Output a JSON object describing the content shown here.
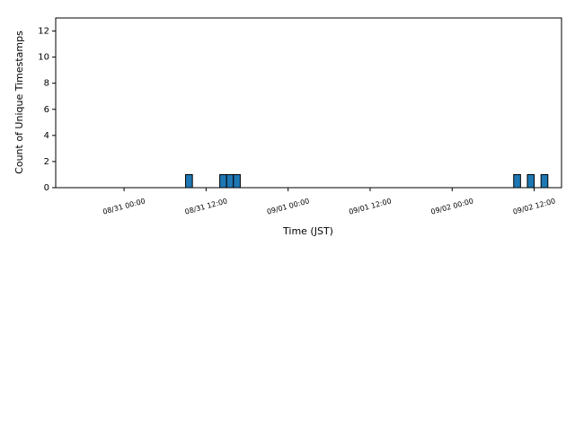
{
  "chart_data": {
    "type": "histogram",
    "xlabel": "Time (JST)",
    "ylabel": "Count of Unique Timestamps",
    "bins": [
      9,
      10,
      11,
      12,
      13,
      14,
      15,
      16,
      17,
      18,
      19,
      20,
      21,
      22,
      23,
      24,
      25,
      26,
      27,
      28,
      29,
      30,
      31,
      32,
      33,
      34,
      35,
      36,
      37,
      38,
      39,
      40,
      41,
      42,
      43,
      44,
      45,
      46,
      47,
      48,
      49,
      50,
      51,
      52,
      53,
      54,
      55,
      56,
      57,
      58,
      59,
      60,
      61,
      62
    ],
    "values": [
      1,
      0,
      0,
      0,
      0,
      1,
      1,
      1,
      0,
      0,
      0,
      0,
      0,
      0,
      0,
      0,
      0,
      0,
      0,
      0,
      0,
      0,
      0,
      0,
      0,
      0,
      0,
      0,
      0,
      0,
      0,
      0,
      0,
      0,
      0,
      0,
      0,
      0,
      0,
      0,
      0,
      0,
      0,
      0,
      0,
      0,
      0,
      0,
      1,
      0,
      1,
      0,
      1
    ],
    "color": "#1f77b4",
    "xlim": [
      -10,
      64
    ],
    "xticks": [
      {
        "value": 0,
        "label": "08/31 00:00"
      },
      {
        "value": 12,
        "label": "08/31 12:00"
      },
      {
        "value": 24,
        "label": "09/01 00:00"
      },
      {
        "value": 36,
        "label": "09/01 12:00"
      },
      {
        "value": 48,
        "label": "09/02 00:00"
      },
      {
        "value": 60,
        "label": "09/02 12:00"
      }
    ],
    "ylim": [
      0,
      13
    ],
    "yticks": [
      0,
      2,
      4,
      6,
      8,
      10,
      12
    ]
  }
}
